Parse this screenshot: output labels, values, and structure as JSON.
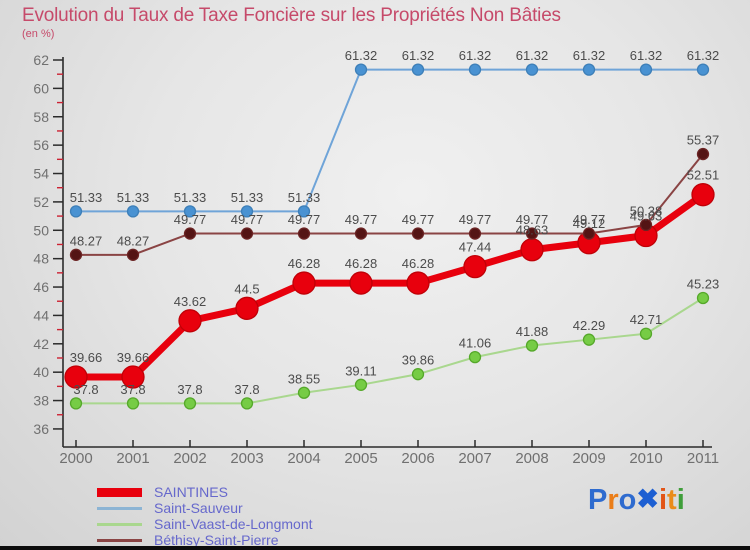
{
  "header": {
    "title": "Evolution du Taux de Taxe Foncière sur les Propriétés Non Bâties",
    "subtitle": "(en %)"
  },
  "palette": {
    "title": "#c64a6a",
    "value_label": "#4c4c4c",
    "axis": "#2b2b2b",
    "tick_minor": "#cc2233",
    "axis_label": "#707070",
    "legend_text": "#6668cc",
    "bottom_bar": "#0c0c0c"
  },
  "chart_data": {
    "type": "line",
    "title": "Evolution du Taux de Taxe Foncière sur les Propriétés Non Bâties",
    "subtitle": "(en %)",
    "x": [
      "2000",
      "2001",
      "2002",
      "2003",
      "2004",
      "2005",
      "2006",
      "2007",
      "2008",
      "2009",
      "2010",
      "2011"
    ],
    "ylim": [
      36,
      62
    ],
    "ytick_step": 2,
    "grid": false,
    "legend_position": "bottom-left",
    "series": [
      {
        "name": "Saint-Sauveur",
        "line_color": "#6fa4d8",
        "marker_color": "#4992d2",
        "marker_stroke": "#3d7fb8",
        "line_width": 2,
        "marker_r": 5.5,
        "values": [
          51.33,
          51.33,
          51.33,
          51.33,
          51.33,
          61.32,
          61.32,
          61.32,
          61.32,
          61.32,
          61.32,
          61.32
        ],
        "labels": [
          "51.33",
          "51.33",
          "51.33",
          "51.33",
          "51.33",
          "61.32",
          "61.32",
          "61.32",
          "61.32",
          "61.32",
          "61.32",
          "61.32"
        ]
      },
      {
        "name": "Saint-Vaast-de-Longmont",
        "line_color": "#a9d78e",
        "marker_color": "#76cc45",
        "marker_stroke": "#55a82a",
        "line_width": 2,
        "marker_r": 5.5,
        "values": [
          37.8,
          37.8,
          37.8,
          37.8,
          38.55,
          39.11,
          39.86,
          41.06,
          41.88,
          42.29,
          42.71,
          45.23
        ],
        "labels": [
          "37.8",
          "37.8",
          "37.8",
          "37.8",
          "38.55",
          "39.11",
          "39.86",
          "41.06",
          "41.88",
          "42.29",
          "42.71",
          "45.23"
        ]
      },
      {
        "name": "SAINTINES",
        "line_color": "#e8000d",
        "marker_color": "#e8000d",
        "marker_stroke": "#c00007",
        "line_width": 7,
        "marker_r": 11,
        "values": [
          39.66,
          39.66,
          43.62,
          44.5,
          46.28,
          46.28,
          46.28,
          47.44,
          48.63,
          49.12,
          49.63,
          52.51
        ],
        "labels": [
          "39.66",
          "39.66",
          "43.62",
          "44.5",
          "46.28",
          "46.28",
          "46.28",
          "47.44",
          "48.63",
          "49.12",
          "49.63",
          "52.51"
        ]
      },
      {
        "name": "Béthisy-Saint-Pierre",
        "line_color": "#8a4444",
        "marker_color": "#541414",
        "marker_stroke": "#6b2424",
        "line_width": 2,
        "marker_r": 5.5,
        "values": [
          48.27,
          48.27,
          49.77,
          49.77,
          49.77,
          49.77,
          49.77,
          49.77,
          49.77,
          49.77,
          50.38,
          55.37
        ],
        "labels": [
          "48.27",
          "48.27",
          "49.77",
          "49.77",
          "49.77",
          "49.77",
          "49.77",
          "49.77",
          "49.77",
          "49.77",
          "50.38",
          "55.37"
        ]
      }
    ]
  },
  "legend": {
    "items": [
      {
        "label": "SAINTINES",
        "color": "#e8000d",
        "thick": true
      },
      {
        "label": "Saint-Sauveur",
        "color": "#8cb4d4",
        "thick": false
      },
      {
        "label": "Saint-Vaast-de-Longmont",
        "color": "#a9d78e",
        "thick": false
      },
      {
        "label": "Béthisy-Saint-Pierre",
        "color": "#8a4444",
        "thick": false
      }
    ]
  },
  "logo": {
    "name": "proxiti",
    "letters": [
      {
        "ch": "P",
        "color": "#2e6bcf"
      },
      {
        "ch": "r",
        "color": "#ea7d18"
      },
      {
        "ch": "o",
        "color": "#2e6bcf"
      },
      {
        "ch": "✖",
        "color": "#1d5fd2"
      },
      {
        "ch": "i",
        "color": "#e25517"
      },
      {
        "ch": "t",
        "color": "#ea8c1a"
      },
      {
        "ch": "i",
        "color": "#3f9e3a"
      }
    ]
  }
}
